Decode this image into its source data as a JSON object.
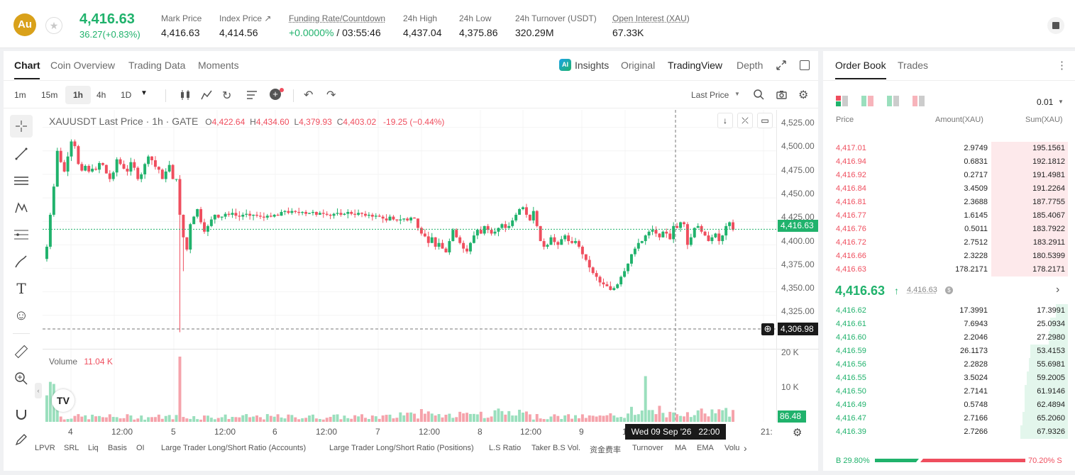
{
  "header": {
    "logo": "Au",
    "price": "4,416.63",
    "change": "36.27(+0.83%)",
    "stats": [
      {
        "label": "Mark Price",
        "value": "4,416.63"
      },
      {
        "label": "Index Price ↗",
        "value": "4,414.56"
      },
      {
        "label": "Funding Rate/Countdown",
        "value_green": "+0.0000%",
        "value": " / 03:55:46"
      },
      {
        "label": "24h High",
        "value": "4,437.04"
      },
      {
        "label": "24h Low",
        "value": "4,375.86"
      },
      {
        "label": "24h Turnover (USDT)",
        "value": "320.29M"
      },
      {
        "label": "Open Interest (XAU)",
        "value": "67.33K"
      }
    ]
  },
  "chart_tabs": [
    "Chart",
    "Coin Overview",
    "Trading Data",
    "Moments"
  ],
  "chart_views": {
    "insights": "Insights",
    "original": "Original",
    "tradingview": "TradingView",
    "depth": "Depth"
  },
  "intervals": [
    "1m",
    "15m",
    "1h",
    "4h",
    "1D"
  ],
  "price_type": "Last Price",
  "legend": {
    "symbol": "XAUUSDT Last Price · 1h · GATE",
    "o_lbl": "O",
    "o": "4,422.64",
    "h_lbl": "H",
    "h": "4,434.60",
    "l_lbl": "L",
    "l": "4,379.93",
    "c_lbl": "C",
    "c": "4,403.02",
    "chg": "-19.25 (−0.44%)"
  },
  "volume_legend": {
    "label": "Volume",
    "value": "11.04 K"
  },
  "y_ticks": [
    "4,525.00",
    "4,500.00",
    "4,475.00",
    "4,450.00",
    "4,425.00",
    "4,400.00",
    "4,375.00",
    "4,350.00",
    "4,325.00"
  ],
  "price_tag": "4,416.63",
  "cross_tag": "4,306.98",
  "vol_ticks": [
    "20 K",
    "10 K"
  ],
  "vol_tag": "86.48",
  "x_ticks": [
    "4",
    "12:00",
    "5",
    "12:00",
    "6",
    "12:00",
    "7",
    "12:00",
    "8",
    "12:00",
    "9",
    "12:00",
    "21:"
  ],
  "crosshair_time": "Wed 09 Sep '26   22:00",
  "indicators": [
    "LPVR",
    "SRL",
    "Liq",
    "Basis",
    "OI",
    "Large Trader Long/Short Ratio (Accounts)",
    "Large Trader Long/Short Ratio (Positions)",
    "L.S Ratio",
    "Taker B.S Vol.",
    "资金费率",
    "Turnover",
    "MA",
    "EMA",
    "Volu"
  ],
  "orderbook": {
    "tabs": [
      "Order Book",
      "Trades"
    ],
    "precision": "0.01",
    "headers": [
      "Price",
      "Amount(XAU)",
      "Sum(XAU)"
    ],
    "asks": [
      [
        "4,417.01",
        "2.9749",
        "195.1561"
      ],
      [
        "4,416.94",
        "0.6831",
        "192.1812"
      ],
      [
        "4,416.92",
        "0.2717",
        "191.4981"
      ],
      [
        "4,416.84",
        "3.4509",
        "191.2264"
      ],
      [
        "4,416.81",
        "2.3688",
        "187.7755"
      ],
      [
        "4,416.77",
        "1.6145",
        "185.4067"
      ],
      [
        "4,416.76",
        "0.5011",
        "183.7922"
      ],
      [
        "4,416.72",
        "2.7512",
        "183.2911"
      ],
      [
        "4,416.66",
        "2.3228",
        "180.5399"
      ],
      [
        "4,416.63",
        "178.2171",
        "178.2171"
      ]
    ],
    "last": "4,416.63",
    "last_arrow": "↑",
    "mark": "4,416.63",
    "bids": [
      [
        "4,416.62",
        "17.3991",
        "17.3991"
      ],
      [
        "4,416.61",
        "7.6943",
        "25.0934"
      ],
      [
        "4,416.60",
        "2.2046",
        "27.2980"
      ],
      [
        "4,416.59",
        "26.1173",
        "53.4153"
      ],
      [
        "4,416.56",
        "2.2828",
        "55.6981"
      ],
      [
        "4,416.55",
        "3.5024",
        "59.2005"
      ],
      [
        "4,416.50",
        "2.7141",
        "61.9146"
      ],
      [
        "4,416.49",
        "0.5748",
        "62.4894"
      ],
      [
        "4,416.47",
        "2.7166",
        "65.2060"
      ],
      [
        "4,416.39",
        "2.7266",
        "67.9326"
      ]
    ],
    "buy_ratio": "B 29.80%",
    "sell_ratio": "70.20% S",
    "buy_frac": 0.298
  },
  "colors": {
    "up": "#20b26c",
    "down": "#ef4e5e"
  },
  "chart_data": {
    "type": "candlestick",
    "symbol": "XAUUSDT",
    "interval": "1h",
    "ylim": [
      4306,
      4530
    ],
    "closes": [
      4398,
      4432,
      4462,
      4500,
      4488,
      4478,
      4494,
      4510,
      4505,
      4486,
      4479,
      4484,
      4478,
      4481,
      4480,
      4487,
      4485,
      4476,
      4470,
      4477,
      4491,
      4486,
      4481,
      4478,
      4488,
      4482,
      4470,
      4475,
      4486,
      4494,
      4490,
      4483,
      4480,
      4470,
      4478,
      4485,
      4470,
      4470,
      4432,
      4408,
      4395,
      4422,
      4430,
      4438,
      4424,
      4414,
      4420,
      4427,
      4432,
      4429,
      4430,
      4433,
      4432,
      4434,
      4431,
      4430,
      4432,
      4433,
      4431,
      4432,
      4431,
      4430,
      4429,
      4431,
      4430,
      4432,
      4431,
      4435,
      4436,
      4434,
      4436,
      4435,
      4434,
      4435,
      4433,
      4434,
      4435,
      4432,
      4434,
      4433,
      4432,
      4431,
      4433,
      4434,
      4432,
      4433,
      4435,
      4433,
      4432,
      4434,
      4433,
      4431,
      4432,
      4430,
      4431,
      4430,
      4428,
      4426,
      4430,
      4427,
      4426,
      4427,
      4428,
      4426,
      4429,
      4428,
      4418,
      4412,
      4409,
      4402,
      4408,
      4398,
      4402,
      4396,
      4392,
      4404,
      4416,
      4408,
      4402,
      4396,
      4393,
      4402,
      4410,
      4416,
      4412,
      4420,
      4416,
      4412,
      4414,
      4418,
      4422,
      4418,
      4420,
      4426,
      4432,
      4438,
      4440,
      4432,
      4426,
      4436,
      4420,
      4404,
      4398,
      4400,
      4408,
      4403,
      4400,
      4406,
      4410,
      4404,
      4402,
      4404,
      4398,
      4390,
      4384,
      4376,
      4370,
      4366,
      4360,
      4358,
      4356,
      4352,
      4354,
      4358,
      4366,
      4372,
      4380,
      4390,
      4396,
      4402,
      4404,
      4410,
      4414,
      4416,
      4412,
      4408,
      4414,
      4412,
      4406,
      4420,
      4418,
      4424,
      4422,
      4400,
      4408,
      4418,
      4420,
      4414,
      4410,
      4404,
      4408,
      4412,
      4404,
      4410,
      4420,
      4424,
      4416
    ]
  }
}
